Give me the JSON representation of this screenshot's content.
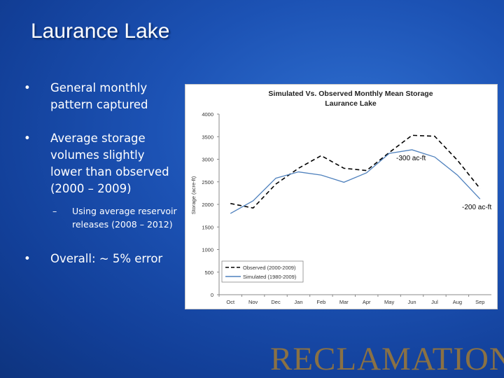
{
  "slide": {
    "title": "Laurance Lake",
    "bullets": [
      {
        "text": "General monthly pattern captured"
      },
      {
        "text": "Average storage volumes slightly lower than observed (2000 – 2009)",
        "sub": "Using average reservoir releases (2008 – 2012)"
      },
      {
        "text": "Overall:  ~ 5% error"
      }
    ],
    "bullet_glyph": "•",
    "sub_glyph": "–",
    "annotations": {
      "a1": "-300 ac-ft",
      "a2": "-200 ac-ft"
    },
    "logo_text": "RECLAMATION"
  },
  "colors": {
    "observed": "#000000",
    "simulated": "#4f81bd",
    "logo": "#8a7144"
  },
  "chart_data": {
    "type": "line",
    "title": "Simulated Vs. Observed Monthly Mean Storage",
    "subtitle": "Laurance Lake",
    "xlabel": "",
    "ylabel": "Storage (acre-ft)",
    "ylim": [
      0,
      4000
    ],
    "yticks": [
      0,
      500,
      1000,
      1500,
      2000,
      2500,
      3000,
      3500,
      4000
    ],
    "categories": [
      "Oct",
      "Nov",
      "Dec",
      "Jan",
      "Feb",
      "Mar",
      "Apr",
      "May",
      "Jun",
      "Jul",
      "Aug",
      "Sep"
    ],
    "grid": false,
    "legend_position": "bottom-left",
    "series": [
      {
        "name": "Observed (2000-2009)",
        "style": "dashed",
        "values": [
          2020,
          1920,
          2450,
          2800,
          3080,
          2800,
          2750,
          3150,
          3530,
          3510,
          2980,
          2350
        ]
      },
      {
        "name": "Simulated (1980-2009)",
        "style": "solid",
        "values": [
          1800,
          2080,
          2580,
          2720,
          2650,
          2490,
          2700,
          3130,
          3210,
          3050,
          2650,
          2120
        ]
      }
    ]
  }
}
